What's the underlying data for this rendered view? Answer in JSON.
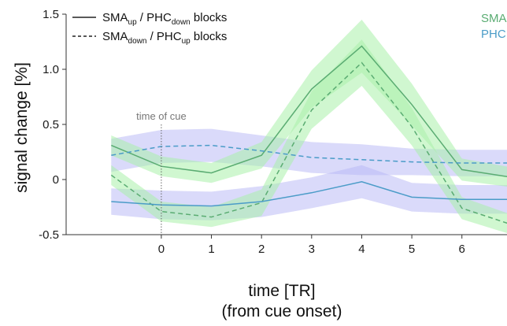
{
  "chart_data": {
    "type": "line",
    "xlabel": "time [TR]",
    "xlabel_line2": "(from cue onset)",
    "ylabel": "signal change [%]",
    "xlim": [
      -1.9,
      6.9
    ],
    "ylim": [
      -0.5,
      1.5
    ],
    "xticks": [
      "0",
      "1",
      "2",
      "3",
      "4",
      "5",
      "6"
    ],
    "yticks": [
      "-0.5",
      "0",
      "0.5",
      "1.0",
      "1.5"
    ],
    "colors": {
      "sma_line": "#5aac72",
      "sma_band": "#a9f0a9",
      "phc_line": "#4b9cc8",
      "phc_band": "#b6b6f5"
    },
    "legend": {
      "placement": "top-left",
      "items": [
        {
          "style": "solid",
          "parts": [
            "SMA",
            "up",
            " / PHC",
            "down",
            " blocks"
          ]
        },
        {
          "style": "dashed",
          "parts": [
            "SMA",
            "down",
            " / PHC",
            "up",
            " blocks"
          ]
        }
      ]
    },
    "region_labels": [
      {
        "text": "SMA",
        "color": "#5aac72"
      },
      {
        "text": "PHC",
        "color": "#4b9cc8"
      }
    ],
    "annotation": {
      "text": "time of cue",
      "x": 0
    },
    "x": [
      -1,
      0,
      1,
      2,
      3,
      4,
      5,
      6,
      7
    ],
    "series": [
      {
        "region": "SMA",
        "style": "solid",
        "values": [
          0.31,
          0.12,
          0.06,
          0.22,
          0.82,
          1.21,
          0.68,
          0.09,
          0.02
        ],
        "err": [
          0.09,
          0.09,
          0.09,
          0.12,
          0.17,
          0.24,
          0.19,
          0.1,
          0.09
        ]
      },
      {
        "region": "SMA",
        "style": "dashed",
        "values": [
          0.04,
          -0.29,
          -0.34,
          -0.21,
          0.63,
          1.06,
          0.48,
          -0.26,
          -0.41
        ],
        "err": [
          0.09,
          0.09,
          0.09,
          0.12,
          0.17,
          0.21,
          0.17,
          0.1,
          0.09
        ]
      },
      {
        "region": "PHC",
        "style": "dashed",
        "values": [
          0.22,
          0.3,
          0.31,
          0.26,
          0.2,
          0.18,
          0.16,
          0.15,
          0.15
        ],
        "err": [
          0.15,
          0.15,
          0.15,
          0.14,
          0.14,
          0.14,
          0.12,
          0.12,
          0.12
        ]
      },
      {
        "region": "PHC",
        "style": "solid",
        "values": [
          -0.2,
          -0.23,
          -0.24,
          -0.2,
          -0.12,
          -0.02,
          -0.16,
          -0.18,
          -0.18
        ],
        "err": [
          0.12,
          0.13,
          0.13,
          0.14,
          0.14,
          0.15,
          0.13,
          0.13,
          0.13
        ]
      }
    ]
  }
}
